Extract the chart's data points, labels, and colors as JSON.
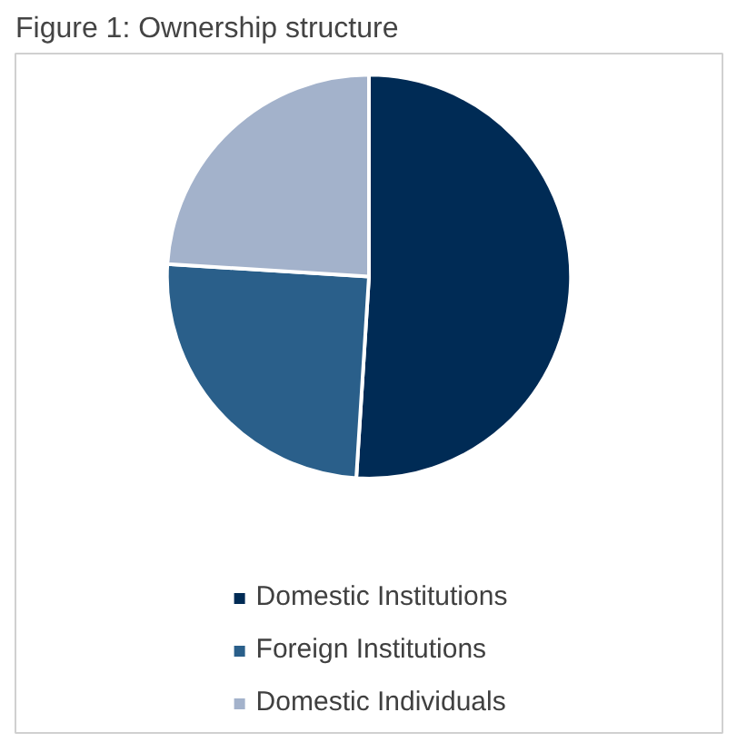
{
  "chart_data": {
    "type": "pie",
    "title": "Figure 1: Ownership structure",
    "categories": [
      "Domestic Institutions",
      "Foreign Institutions",
      "Domestic Individuals"
    ],
    "values": [
      51,
      25,
      24
    ],
    "colors": [
      "#002b55",
      "#2a5f8a",
      "#a3b2cb"
    ],
    "legend": "bottom"
  }
}
